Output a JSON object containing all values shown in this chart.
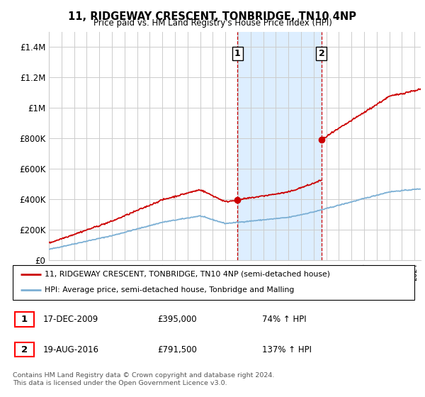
{
  "title": "11, RIDGEWAY CRESCENT, TONBRIDGE, TN10 4NP",
  "subtitle": "Price paid vs. HM Land Registry's House Price Index (HPI)",
  "ylabel_ticks": [
    "£0",
    "£200K",
    "£400K",
    "£600K",
    "£800K",
    "£1M",
    "£1.2M",
    "£1.4M"
  ],
  "ylabel_values": [
    0,
    200000,
    400000,
    600000,
    800000,
    1000000,
    1200000,
    1400000
  ],
  "ylim": [
    0,
    1500000
  ],
  "x_start_year": 1995,
  "x_end_year": 2024,
  "purchase1_year": 2009.96,
  "purchase1_value": 395000,
  "purchase2_year": 2016.63,
  "purchase2_value": 791500,
  "red_line_color": "#cc0000",
  "blue_line_color": "#7bafd4",
  "shading_color": "#ddeeff",
  "legend_label1": "11, RIDGEWAY CRESCENT, TONBRIDGE, TN10 4NP (semi-detached house)",
  "legend_label2": "HPI: Average price, semi-detached house, Tonbridge and Malling",
  "footer": "Contains HM Land Registry data © Crown copyright and database right 2024.\nThis data is licensed under the Open Government Licence v3.0.",
  "table_row1": [
    "1",
    "17-DEC-2009",
    "£395,000",
    "74% ↑ HPI"
  ],
  "table_row2": [
    "2",
    "19-AUG-2016",
    "£791,500",
    "137% ↑ HPI"
  ],
  "background_color": "#ffffff",
  "grid_color": "#cccccc"
}
